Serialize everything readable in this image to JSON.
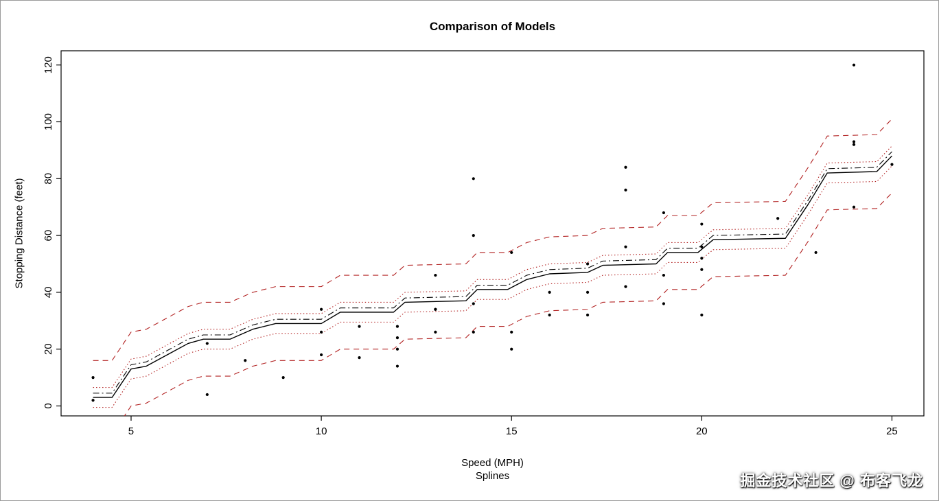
{
  "watermark": {
    "text": "掘金技术社区 @ 布客飞龙"
  },
  "chart_data": {
    "type": "scatter",
    "title": "Comparison of Models",
    "xlabel": "Speed (MPH)",
    "xlabel_sub": "Splines",
    "ylabel": "Stopping Distance (feet)",
    "xlim": [
      3.16,
      25.84
    ],
    "ylim": [
      -3.5,
      125
    ],
    "xticks": [
      5,
      10,
      15,
      20,
      25
    ],
    "yticks": [
      0,
      20,
      40,
      60,
      80,
      100,
      120
    ],
    "grid": false,
    "legend": "none",
    "colors": {
      "points": "#000000",
      "fit": "#000000",
      "band": "#b22222",
      "frame": "#000000"
    },
    "points": {
      "x_name": "speed",
      "y_name": "dist",
      "speed": [
        4,
        4,
        7,
        7,
        8,
        9,
        10,
        10,
        10,
        11,
        11,
        12,
        12,
        12,
        12,
        13,
        13,
        13,
        13,
        14,
        14,
        14,
        14,
        15,
        15,
        15,
        16,
        16,
        17,
        17,
        17,
        18,
        18,
        18,
        18,
        19,
        19,
        19,
        20,
        20,
        20,
        20,
        20,
        22,
        23,
        24,
        24,
        24,
        24,
        25
      ],
      "dist": [
        2,
        10,
        4,
        22,
        16,
        10,
        18,
        26,
        34,
        17,
        28,
        14,
        20,
        24,
        28,
        26,
        34,
        34,
        46,
        26,
        36,
        60,
        80,
        20,
        26,
        54,
        32,
        40,
        32,
        40,
        50,
        42,
        56,
        76,
        84,
        36,
        46,
        68,
        32,
        48,
        52,
        56,
        64,
        66,
        54,
        70,
        92,
        93,
        120,
        85
      ]
    },
    "fit": {
      "name": "spline-fit",
      "x": [
        4.0,
        4.5,
        5.0,
        5.4,
        6.5,
        6.9,
        7.6,
        8.2,
        8.8,
        10.0,
        10.5,
        11.9,
        12.2,
        13.8,
        14.1,
        14.9,
        15.4,
        16.0,
        17.0,
        17.4,
        18.8,
        19.1,
        19.9,
        20.3,
        22.2,
        22.8,
        23.3,
        24.6,
        25.0
      ],
      "y": [
        3,
        3,
        13,
        14,
        22,
        23.5,
        23.5,
        27,
        29,
        29,
        33,
        33,
        36.5,
        37,
        41,
        41,
        44.5,
        46.5,
        47,
        49.5,
        50,
        54,
        54,
        58.5,
        59,
        71,
        82,
        82.5,
        88
      ]
    },
    "lines": [
      {
        "name": "prediction-band-upper",
        "offset": 13,
        "color": "#b22222",
        "dash": "8 6",
        "width": 1.1
      },
      {
        "name": "prediction-band-lower",
        "offset": -13,
        "color": "#b22222",
        "dash": "8 6",
        "width": 1.1
      },
      {
        "name": "confidence-band-upper",
        "offset": 3.5,
        "color": "#b22222",
        "dash": "1.5 3",
        "width": 1.1
      },
      {
        "name": "confidence-band-lower",
        "offset": -3.5,
        "color": "#b22222",
        "dash": "1.5 3",
        "width": 1.1
      },
      {
        "name": "alt-model-dashdot",
        "offset": 1.5,
        "color": "#000000",
        "dash": "9 4 2 4",
        "width": 1.1
      },
      {
        "name": "spline-fit-solid",
        "offset": 0,
        "color": "#000000",
        "dash": "",
        "width": 1.4
      }
    ],
    "point_radius": 2.1
  }
}
